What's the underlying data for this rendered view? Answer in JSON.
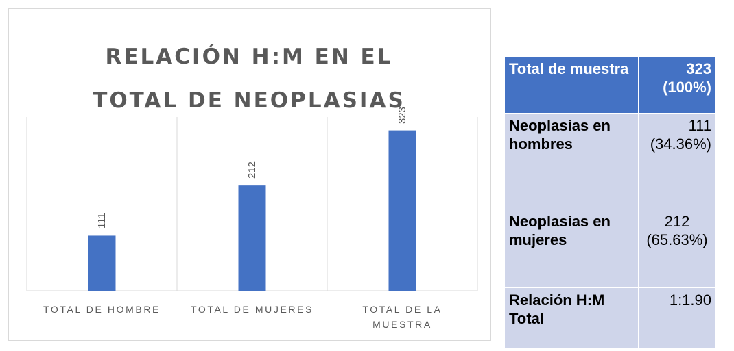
{
  "chart_data": {
    "type": "bar",
    "title": "RELACIÓN H:M EN EL TOTAL DE NEOPLASIAS",
    "categories": [
      "TOTAL DE HOMBRE",
      "TOTAL DE MUJERES",
      "TOTAL DE LA MUESTRA"
    ],
    "values": [
      111,
      212,
      323
    ],
    "color": "#4472c4",
    "ylim": [
      0,
      350
    ],
    "grid": false
  },
  "table": {
    "rows": [
      [
        "Total de muestra",
        "323 (100%)"
      ],
      [
        "Neoplasias en hombres",
        "111 (34.36%)"
      ],
      [
        "Neoplasias en mujeres",
        "212 (65.63%)"
      ],
      [
        "Relación H:M Total",
        "1:1.90"
      ]
    ]
  }
}
